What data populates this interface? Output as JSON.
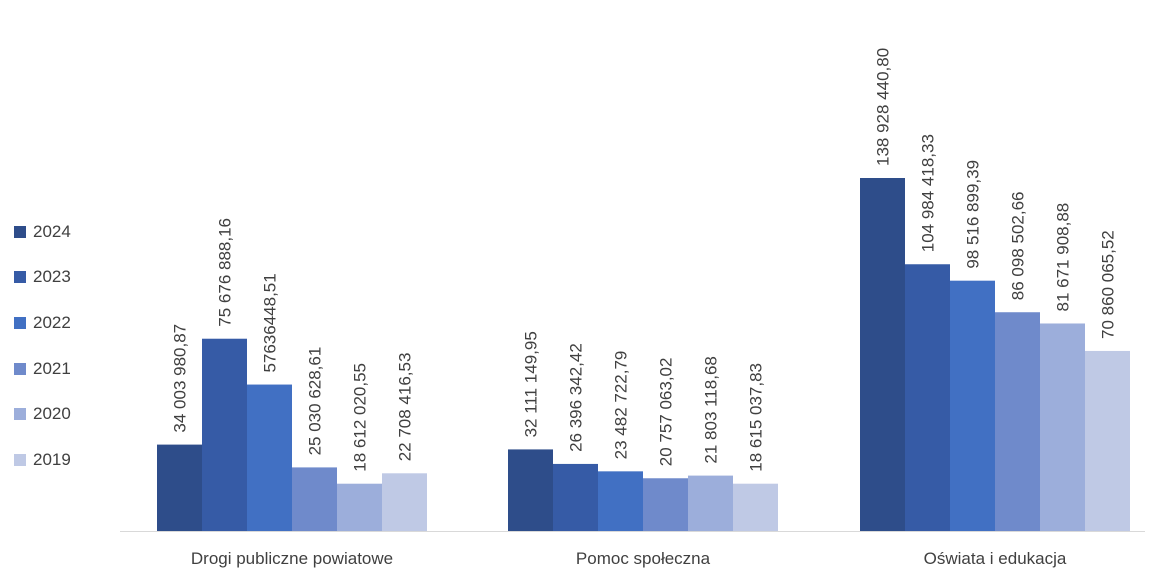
{
  "chart_data": {
    "type": "bar",
    "categories": [
      "Drogi publiczne powiatowe",
      "Pomoc społeczna",
      "Oświata i edukacja"
    ],
    "series": [
      {
        "name": "2024",
        "color": "#2E4D8A",
        "values": [
          34003980.87,
          32111149.95,
          138928440.8
        ],
        "labels": [
          "34 003 980,87",
          "32 111 149,95",
          "138 928 440,80"
        ]
      },
      {
        "name": "2023",
        "color": "#365BA6",
        "values": [
          75676888.16,
          26396342.42,
          104984418.33
        ],
        "labels": [
          "75 676 888,16",
          "26 396 342,42",
          "104 984 418,33"
        ]
      },
      {
        "name": "2022",
        "color": "#4170C3",
        "values": [
          57636448.51,
          23482722.79,
          98516899.39
        ],
        "labels": [
          "57636448,51",
          "23 482 722,79",
          "98 516 899,39"
        ]
      },
      {
        "name": "2021",
        "color": "#6F8ACB",
        "values": [
          25030628.61,
          20757063.02,
          86098502.66
        ],
        "labels": [
          "25 030 628,61",
          "20 757 063,02",
          "86 098 502,66"
        ]
      },
      {
        "name": "2020",
        "color": "#9CAEDB",
        "values": [
          18612020.55,
          21803118.68,
          81671908.88
        ],
        "labels": [
          "18 612 020,55",
          "21 803 118,68",
          "81 671 908,88"
        ]
      },
      {
        "name": "2019",
        "color": "#BFC9E5",
        "values": [
          22708416.53,
          18615037.83,
          70860065.52
        ],
        "labels": [
          "22 708 416,53",
          "18 615 037,83",
          "70 860 065,52"
        ]
      }
    ],
    "ylim": [
      0,
      200000000
    ],
    "grid": false,
    "legend": "left"
  }
}
